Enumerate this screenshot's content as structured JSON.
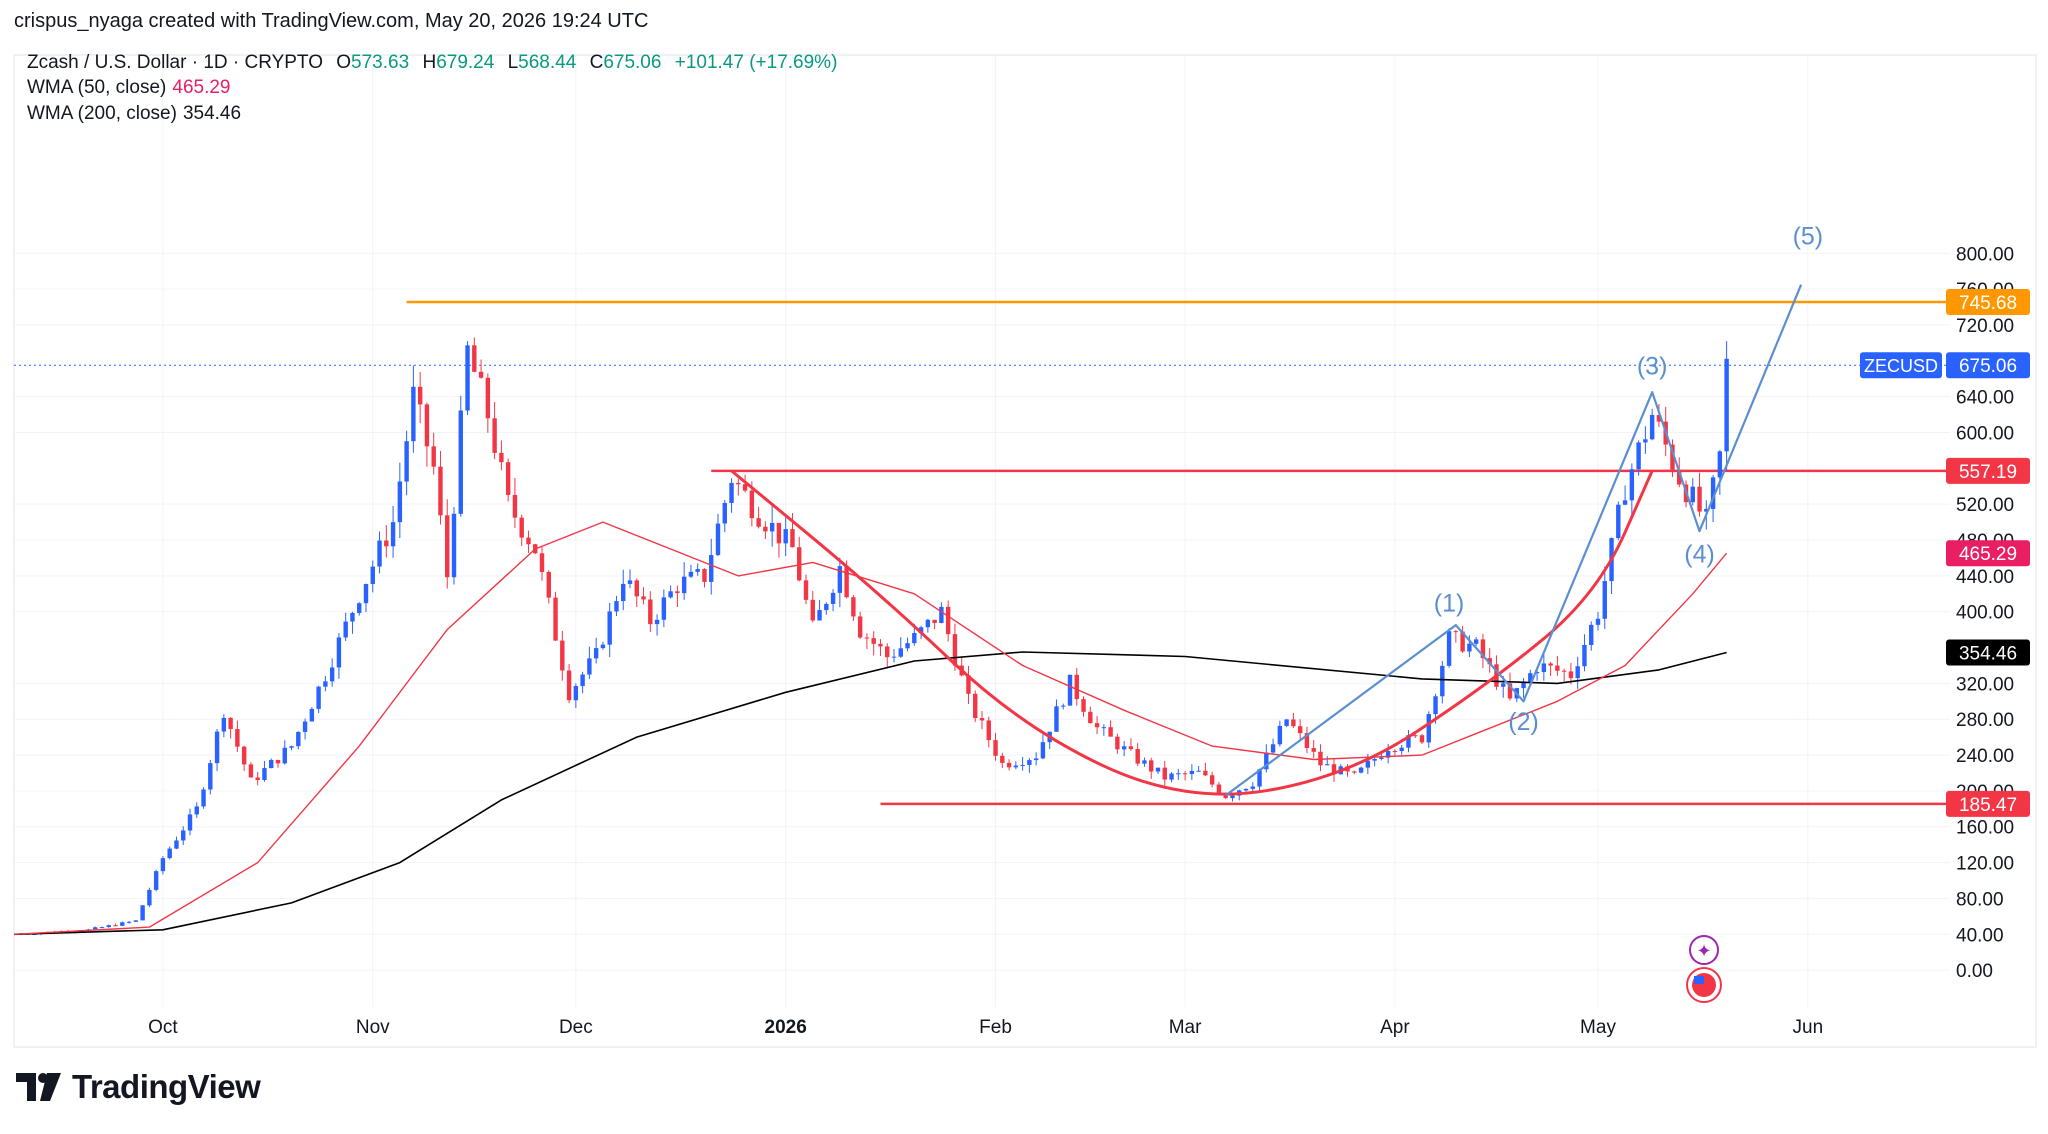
{
  "header": {
    "credit": "crispus_nyaga created with TradingView.com, May 20, 2026 19:24 UTC",
    "symbol": "Zcash / U.S. Dollar · 1D · CRYPTO",
    "ohlc": {
      "o_label": "O",
      "o": "573.63",
      "h_label": "H",
      "h": "679.24",
      "l_label": "L",
      "l": "568.44",
      "c_label": "C",
      "c": "675.06",
      "change": "+101.47 (+17.69%)"
    },
    "wma50_label": "WMA (50, close)",
    "wma50_value": "465.29",
    "wma200_label": "WMA (200, close)",
    "wma200_value": "354.46"
  },
  "brand": {
    "name": "TradingView"
  },
  "colors": {
    "up": "#089981",
    "down": "#f23645",
    "candle_up": "#2962ff",
    "candle_down": "#f23645",
    "wma50": "#f23645",
    "wma200": "#000000",
    "resistance_orange": "#ff9800",
    "level_red": "#f23645",
    "wave_blue": "#5b8fd0",
    "cup_red": "#f23645",
    "price_tag_blue": "#2962ff",
    "wma50_tag": "#e91e63"
  },
  "chart_data": {
    "type": "line",
    "symbol": "ZECUSD",
    "timeframe": "1D",
    "y_axis": {
      "ticks": [
        "800.00",
        "760.00",
        "720.00",
        "640.00",
        "600.00",
        "520.00",
        "480.00",
        "440.00",
        "400.00",
        "320.00",
        "280.00",
        "240.00",
        "200.00",
        "160.00",
        "120.00",
        "80.00",
        "40.00",
        "0.00"
      ],
      "ylim": [
        -30,
        820
      ]
    },
    "x_axis": {
      "ticks": [
        "Oct",
        "Nov",
        "Dec",
        "2026",
        "Feb",
        "Mar",
        "Apr",
        "May",
        "Jun"
      ],
      "xlim": [
        "2025-09-09",
        "2026-06-22"
      ]
    },
    "grid": true,
    "last_price": 675.06,
    "price_labels": [
      {
        "text": "745.68",
        "value": 745.68,
        "color": "#ff9800"
      },
      {
        "text": "675.06",
        "value": 675.06,
        "color": "#2962ff",
        "symbol": "ZECUSD"
      },
      {
        "text": "557.19",
        "value": 557.19,
        "color": "#f23645"
      },
      {
        "text": "465.29",
        "value": 465.29,
        "color": "#e91e63"
      },
      {
        "text": "354.46",
        "value": 354.46,
        "color": "#000000"
      },
      {
        "text": "185.47",
        "value": 185.47,
        "color": "#f23645"
      }
    ],
    "horizontal_levels": [
      {
        "value": 745.68,
        "from": "2025-11-06",
        "to": "2026-06-22",
        "color": "#ff9800"
      },
      {
        "value": 557.19,
        "from": "2025-12-21",
        "to": "2026-06-22",
        "color": "#f23645"
      },
      {
        "value": 185.47,
        "from": "2026-01-15",
        "to": "2026-06-22",
        "color": "#f23645"
      }
    ],
    "close_series": [
      {
        "date": "2025-09-09",
        "v": 40
      },
      {
        "date": "2025-09-20",
        "v": 45
      },
      {
        "date": "2025-09-27",
        "v": 55
      },
      {
        "date": "2025-10-01",
        "v": 125
      },
      {
        "date": "2025-10-06",
        "v": 180
      },
      {
        "date": "2025-10-10",
        "v": 290
      },
      {
        "date": "2025-10-14",
        "v": 210
      },
      {
        "date": "2025-10-20",
        "v": 250
      },
      {
        "date": "2025-10-25",
        "v": 330
      },
      {
        "date": "2025-10-30",
        "v": 420
      },
      {
        "date": "2025-11-04",
        "v": 500
      },
      {
        "date": "2025-11-07",
        "v": 640
      },
      {
        "date": "2025-11-10",
        "v": 560
      },
      {
        "date": "2025-11-12",
        "v": 440
      },
      {
        "date": "2025-11-15",
        "v": 690
      },
      {
        "date": "2025-11-18",
        "v": 620
      },
      {
        "date": "2025-11-21",
        "v": 520
      },
      {
        "date": "2025-11-25",
        "v": 470
      },
      {
        "date": "2025-11-30",
        "v": 310
      },
      {
        "date": "2025-12-04",
        "v": 350
      },
      {
        "date": "2025-12-08",
        "v": 440
      },
      {
        "date": "2025-12-12",
        "v": 390
      },
      {
        "date": "2025-12-16",
        "v": 430
      },
      {
        "date": "2025-12-20",
        "v": 440
      },
      {
        "date": "2025-12-24",
        "v": 550
      },
      {
        "date": "2025-12-28",
        "v": 510
      },
      {
        "date": "2026-01-02",
        "v": 470
      },
      {
        "date": "2026-01-05",
        "v": 380
      },
      {
        "date": "2026-01-09",
        "v": 450
      },
      {
        "date": "2026-01-12",
        "v": 380
      },
      {
        "date": "2026-01-16",
        "v": 350
      },
      {
        "date": "2026-01-20",
        "v": 370
      },
      {
        "date": "2026-01-24",
        "v": 400
      },
      {
        "date": "2026-01-28",
        "v": 300
      },
      {
        "date": "2026-02-02",
        "v": 230
      },
      {
        "date": "2026-02-07",
        "v": 240
      },
      {
        "date": "2026-02-12",
        "v": 320
      },
      {
        "date": "2026-02-16",
        "v": 270
      },
      {
        "date": "2026-02-21",
        "v": 240
      },
      {
        "date": "2026-02-26",
        "v": 215
      },
      {
        "date": "2026-03-03",
        "v": 220
      },
      {
        "date": "2026-03-07",
        "v": 195
      },
      {
        "date": "2026-03-11",
        "v": 210
      },
      {
        "date": "2026-03-16",
        "v": 280
      },
      {
        "date": "2026-03-21",
        "v": 230
      },
      {
        "date": "2026-03-26",
        "v": 215
      },
      {
        "date": "2026-03-31",
        "v": 250
      },
      {
        "date": "2026-04-05",
        "v": 260
      },
      {
        "date": "2026-04-09",
        "v": 370
      },
      {
        "date": "2026-04-13",
        "v": 360
      },
      {
        "date": "2026-04-18",
        "v": 300
      },
      {
        "date": "2026-04-22",
        "v": 340
      },
      {
        "date": "2026-04-27",
        "v": 330
      },
      {
        "date": "2026-05-01",
        "v": 400
      },
      {
        "date": "2026-05-05",
        "v": 540
      },
      {
        "date": "2026-05-09",
        "v": 620
      },
      {
        "date": "2026-05-13",
        "v": 550
      },
      {
        "date": "2026-05-17",
        "v": 500
      },
      {
        "date": "2026-05-19",
        "v": 573
      },
      {
        "date": "2026-05-20",
        "v": 675
      }
    ],
    "wma50_series": [
      {
        "date": "2025-09-09",
        "v": 40
      },
      {
        "date": "2025-09-29",
        "v": 48
      },
      {
        "date": "2025-10-15",
        "v": 120
      },
      {
        "date": "2025-10-30",
        "v": 250
      },
      {
        "date": "2025-11-12",
        "v": 380
      },
      {
        "date": "2025-11-25",
        "v": 470
      },
      {
        "date": "2025-12-05",
        "v": 500
      },
      {
        "date": "2025-12-15",
        "v": 470
      },
      {
        "date": "2025-12-25",
        "v": 440
      },
      {
        "date": "2026-01-05",
        "v": 455
      },
      {
        "date": "2026-01-20",
        "v": 420
      },
      {
        "date": "2026-02-05",
        "v": 340
      },
      {
        "date": "2026-02-20",
        "v": 290
      },
      {
        "date": "2026-03-05",
        "v": 250
      },
      {
        "date": "2026-03-20",
        "v": 235
      },
      {
        "date": "2026-04-05",
        "v": 240
      },
      {
        "date": "2026-04-15",
        "v": 270
      },
      {
        "date": "2026-04-25",
        "v": 300
      },
      {
        "date": "2026-05-05",
        "v": 340
      },
      {
        "date": "2026-05-15",
        "v": 420
      },
      {
        "date": "2026-05-20",
        "v": 465.29
      }
    ],
    "wma200_series": [
      {
        "date": "2025-09-09",
        "v": 40
      },
      {
        "date": "2025-10-01",
        "v": 45
      },
      {
        "date": "2025-10-20",
        "v": 75
      },
      {
        "date": "2025-11-05",
        "v": 120
      },
      {
        "date": "2025-11-20",
        "v": 190
      },
      {
        "date": "2025-12-10",
        "v": 260
      },
      {
        "date": "2026-01-01",
        "v": 310
      },
      {
        "date": "2026-01-20",
        "v": 345
      },
      {
        "date": "2026-02-05",
        "v": 355
      },
      {
        "date": "2026-03-01",
        "v": 350
      },
      {
        "date": "2026-04-05",
        "v": 325
      },
      {
        "date": "2026-04-25",
        "v": 320
      },
      {
        "date": "2026-05-10",
        "v": 335
      },
      {
        "date": "2026-05-20",
        "v": 354.46
      }
    ],
    "cup_curve": [
      {
        "date": "2025-12-24",
        "v": 557.19
      },
      {
        "date": "2026-01-15",
        "v": 420
      },
      {
        "date": "2026-02-05",
        "v": 270
      },
      {
        "date": "2026-03-01",
        "v": 185.47
      },
      {
        "date": "2026-03-25",
        "v": 215
      },
      {
        "date": "2026-04-15",
        "v": 320
      },
      {
        "date": "2026-05-01",
        "v": 420
      },
      {
        "date": "2026-05-09",
        "v": 557.19
      }
    ],
    "wave_lines": [
      {
        "date": "2026-03-07",
        "v": 195
      },
      {
        "date": "2026-04-10",
        "v": 385
      },
      {
        "date": "2026-04-20",
        "v": 300
      },
      {
        "date": "2026-05-09",
        "v": 645
      },
      {
        "date": "2026-05-16",
        "v": 490
      },
      {
        "date": "2026-05-31",
        "v": 765
      }
    ],
    "wave_labels": [
      {
        "text": "(1)",
        "date": "2026-04-09",
        "v": 400
      },
      {
        "text": "(2)",
        "date": "2026-04-20",
        "v": 268
      },
      {
        "text": "(3)",
        "date": "2026-05-09",
        "v": 665
      },
      {
        "text": "(4)",
        "date": "2026-05-16",
        "v": 455
      },
      {
        "text": "(5)",
        "date": "2026-06-01",
        "v": 810
      }
    ]
  }
}
